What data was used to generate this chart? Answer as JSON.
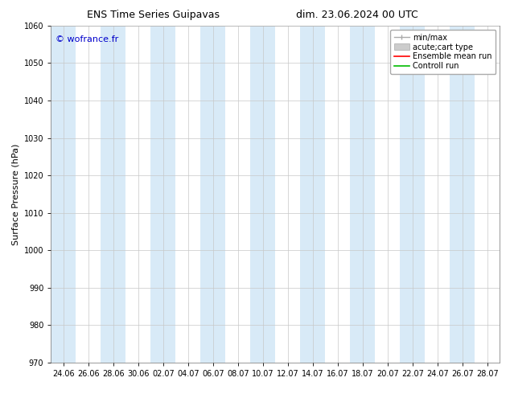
{
  "title_left": "ENS Time Series Guipavas",
  "title_right": "dim. 23.06.2024 00 UTC",
  "ylabel": "Surface Pressure (hPa)",
  "ylim": [
    970,
    1060
  ],
  "yticks": [
    970,
    980,
    990,
    1000,
    1010,
    1020,
    1030,
    1040,
    1050,
    1060
  ],
  "x_labels": [
    "24.06",
    "26.06",
    "28.06",
    "30.06",
    "02.07",
    "04.07",
    "06.07",
    "08.07",
    "10.07",
    "12.07",
    "14.07",
    "16.07",
    "18.07",
    "20.07",
    "22.07",
    "24.07",
    "26.07",
    "28.07"
  ],
  "shade_color": "#d8eaf7",
  "bg_color": "#ffffff",
  "watermark": "© wofrance.fr",
  "watermark_color": "#0000cc",
  "title_fontsize": 9,
  "tick_fontsize": 7,
  "ylabel_fontsize": 8,
  "grid_color": "#c8c8c8",
  "spine_color": "#888888",
  "legend_fontsize": 7
}
